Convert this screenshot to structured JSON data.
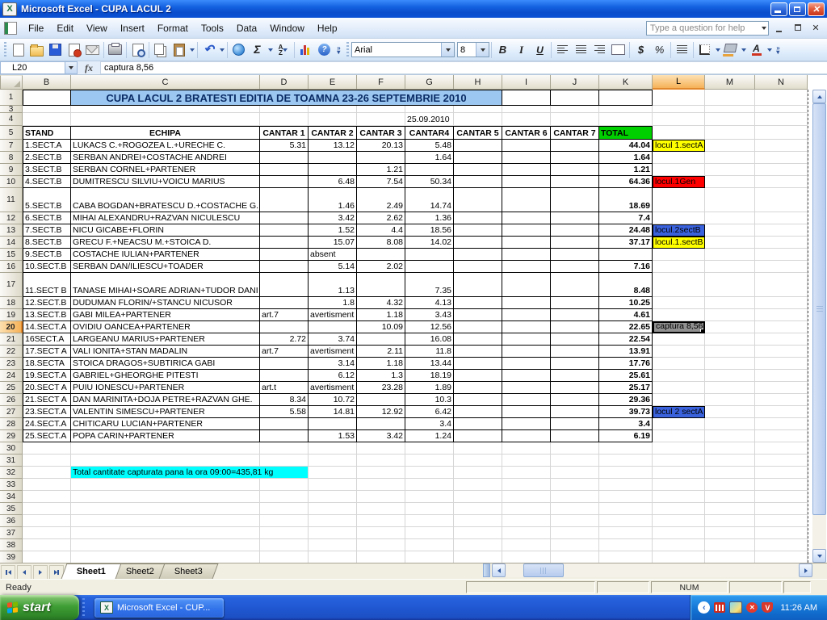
{
  "window_title": "Microsoft Excel - CUPA LACUL 2",
  "menu": [
    "File",
    "Edit",
    "View",
    "Insert",
    "Format",
    "Tools",
    "Data",
    "Window",
    "Help"
  ],
  "help_placeholder": "Type a question for help",
  "toolbar": {
    "font_name": "Arial",
    "font_size": "8"
  },
  "formula_bar": {
    "name_box": "L20",
    "value": "captura 8,56"
  },
  "sheet": {
    "columns": [
      "B",
      "C",
      "D",
      "E",
      "F",
      "G",
      "H",
      "I",
      "J",
      "K",
      "L",
      "M",
      "N"
    ],
    "title": "CUPA LACUL 2 BRATESTI EDITIA DE TOAMNA 23-26 SEPTEMBRIE 2010",
    "date": "25.09.2010",
    "headers": {
      "stand": "STAND",
      "echipa": "ECHIPA",
      "cantar": [
        "CANTAR 1",
        "CANTAR 2",
        "CANTAR 3",
        "CANTAR4",
        "CANTAR 5",
        "CANTAR 6",
        "CANTAR 7"
      ],
      "total": "TOTAL"
    },
    "rows": [
      {
        "n": "7",
        "stand": "1.SECT.A",
        "echipa": "LUKACS C.+ROGOZEA L.+URECHE C.",
        "c1": "5.31",
        "c2": "13.12",
        "c3": "20.13",
        "c4": "5.48",
        "total": "44.04",
        "label": "locul 1.sectA",
        "label_style": "yellow"
      },
      {
        "n": "8",
        "stand": "2.SECT.B",
        "echipa": "SERBAN ANDREI+COSTACHE ANDREI",
        "c4": "1.64",
        "total": "1.64"
      },
      {
        "n": "9",
        "stand": "3.SECT.B",
        "echipa": "SERBAN CORNEL+PARTENER",
        "c3": "1.21",
        "total": "1.21"
      },
      {
        "n": "10",
        "stand": "4.SECT.B",
        "echipa": "DUMITRESCU SILVIU+VOICU MARIUS",
        "c2": "6.48",
        "c3": "7.54",
        "c4": "50.34",
        "total": "64.36",
        "label": "locul.1Gen",
        "label_style": "red"
      },
      {
        "n": "11",
        "stand": "5.SECT.B",
        "echipa": "CABA BOGDAN+BRATESCU D.+COSTACHE G.",
        "c2": "1.46",
        "c3": "2.49",
        "c4": "14.74",
        "total": "18.69",
        "tall": true
      },
      {
        "n": "12",
        "stand": "6.SECT.B",
        "echipa": "MIHAI ALEXANDRU+RAZVAN NICULESCU",
        "c2": "3.42",
        "c3": "2.62",
        "c4": "1.36",
        "total": "7.4"
      },
      {
        "n": "13",
        "stand": "7.SECT.B",
        "echipa": "NICU GICABE+FLORIN",
        "c2": "1.52",
        "c3": "4.4",
        "c4": "18.56",
        "total": "24.48",
        "label": "locul.2sectB",
        "label_style": "blue"
      },
      {
        "n": "14",
        "stand": "8.SECT.B",
        "echipa": "GRECU F.+NEACSU M.+STOICA D.",
        "c2": "15.07",
        "c3": "8.08",
        "c4": "14.02",
        "total": "37.17",
        "label": "locul.1.sectB",
        "label_style": "yellow"
      },
      {
        "n": "15",
        "stand": "9.SECT.B",
        "echipa": "COSTACHE IULIAN+PARTENER",
        "c2": "absent"
      },
      {
        "n": "16",
        "stand": "10.SECT.B",
        "echipa": "SERBAN DAN/ILIESCU+TOADER",
        "c2": "5.14",
        "c3": "2.02",
        "total": "7.16"
      },
      {
        "n": "17",
        "stand": "11.SECT B",
        "echipa": "TANASE MIHAI+SOARE ADRIAN+TUDOR DANI",
        "c2": "1.13",
        "c4": "7.35",
        "total": "8.48",
        "tall": true
      },
      {
        "n": "18",
        "stand": "12.SECT.B",
        "echipa": "DUDUMAN FLORIN/+STANCU NICUSOR",
        "c2": "1.8",
        "c3": "4.32",
        "c4": "4.13",
        "total": "10.25"
      },
      {
        "n": "19",
        "stand": "13.SECT.B",
        "echipa": "GABI MILEA+PARTENER",
        "c1": "art.7",
        "c2": "avertisment",
        "c3": "1.18",
        "c4": "3.43",
        "total": "4.61"
      },
      {
        "n": "20",
        "stand": "14.SECT.A",
        "echipa": "OVIDIU OANCEA+PARTENER",
        "c3": "10.09",
        "c4": "12.56",
        "total": "22.65",
        "label": "captura 8,56",
        "label_style": "selected"
      },
      {
        "n": "21",
        "stand": "16SECT.A",
        "echipa": "LARGEANU MARIUS+PARTENER",
        "c1": "2.72",
        "c2": "3.74",
        "c4": "16.08",
        "total": "22.54"
      },
      {
        "n": "22",
        "stand": "17.SECT A",
        "echipa": "VALI IONITA+STAN MADALIN",
        "c1": "art.7",
        "c2": "avertisment",
        "c3": "2.11",
        "c4": "11.8",
        "total": "13.91"
      },
      {
        "n": "23",
        "stand": "18.SECTA",
        "echipa": "STOICA DRAGOS+SUBTIRICA GABI",
        "c2": "3.14",
        "c3": "1.18",
        "c4": "13.44",
        "total": "17.76"
      },
      {
        "n": "24",
        "stand": "19.SECT.A",
        "echipa": "GABRIEL+GHEORGHE PITESTI",
        "c2": "6.12",
        "c3": "1.3",
        "c4": "18.19",
        "total": "25.61"
      },
      {
        "n": "25",
        "stand": "20.SECT A",
        "echipa": "PUIU IONESCU+PARTENER",
        "c1": "art.t",
        "c2": "avertisment",
        "c3": "23.28",
        "c4": "1.89",
        "total": "25.17"
      },
      {
        "n": "26",
        "stand": "21.SECT A",
        "echipa": "DAN MARINITA+DOJA PETRE+RAZVAN GHE.",
        "c1": "8.34",
        "c2": "10.72",
        "c4": "10.3",
        "total": "29.36"
      },
      {
        "n": "27",
        "stand": "23.SECT.A",
        "echipa": "VALENTIN SIMESCU+PARTENER",
        "c1": "5.58",
        "c2": "14.81",
        "c3": "12.92",
        "c4": "6.42",
        "total": "39.73",
        "label": "locul 2 sectA",
        "label_style": "blue"
      },
      {
        "n": "28",
        "stand": "24.SECT.A",
        "echipa": "CHITICARU LUCIAN+PARTENER",
        "c4": "3.4",
        "total": "3.4"
      },
      {
        "n": "29",
        "stand": "25.SECT.A",
        "echipa": "POPA CARIN+PARTENER",
        "c2": "1.53",
        "c3": "3.42",
        "c4": "1.24",
        "total": "6.19"
      }
    ],
    "empty_rows": [
      "30",
      "31",
      "32",
      "33",
      "34",
      "35",
      "36",
      "37",
      "38",
      "39"
    ],
    "note_row": "32",
    "note": "Total cantitate capturata pana la ora 09:00=435,81 kg",
    "selected_cell": "L20",
    "selected_column": "L",
    "selected_row": "20"
  },
  "tabs": [
    "Sheet1",
    "Sheet2",
    "Sheet3"
  ],
  "status": {
    "mode": "Ready",
    "num": "NUM"
  },
  "taskbar": {
    "start": "start",
    "task": "Microsoft Excel - CUP...",
    "time": "11:26 AM"
  },
  "colors": {
    "title_bg": "#9cc7f0",
    "total_bg": "#00d000",
    "yellow": "#ffff00",
    "red": "#ff0000",
    "blue": "#3a62dd",
    "cyan": "#00ffff",
    "selected_gray": "#909090",
    "selection_orange": "#f6b157"
  }
}
